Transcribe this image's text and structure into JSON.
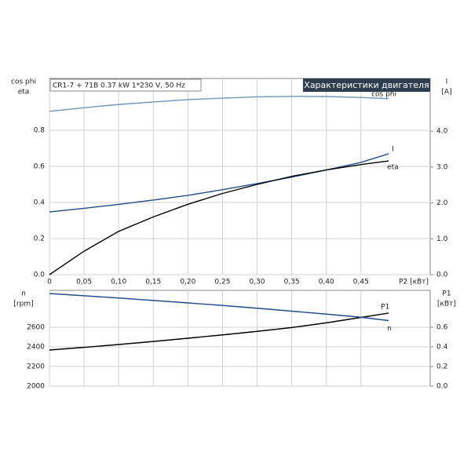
{
  "chart_data": [
    {
      "type": "line",
      "title": "Характеристики двигателя",
      "subtitle": "CR1-7 + 71B  0.37 kW  1*230 V, 50 Hz",
      "x_label": "P2 [кВт]",
      "y_label": [
        "cos phi",
        "eta"
      ],
      "y2_label": [
        "I",
        "[A]"
      ],
      "x": [
        0,
        0.05,
        0.1,
        0.15,
        0.2,
        0.25,
        0.3,
        0.35,
        0.4,
        0.45,
        0.49
      ],
      "series": [
        {
          "name": "cos phi",
          "color": "#7096b8",
          "values": [
            0.905,
            0.925,
            0.943,
            0.957,
            0.97,
            0.978,
            0.985,
            0.988,
            0.987,
            0.982,
            0.975
          ]
        },
        {
          "name": "I",
          "color": "#1f4e8c",
          "axis": "y2",
          "values": [
            1.75,
            1.85,
            1.96,
            2.08,
            2.21,
            2.37,
            2.54,
            2.72,
            2.92,
            3.13,
            3.37
          ]
        },
        {
          "name": "eta",
          "color": "#000000",
          "values": [
            0,
            0.13,
            0.24,
            0.32,
            0.39,
            0.45,
            0.5,
            0.545,
            0.58,
            0.61,
            0.63
          ]
        }
      ],
      "xlim": [
        0,
        0.55
      ],
      "xticks": [
        0,
        {
          "value": 0.05,
          "label": "0,05"
        },
        {
          "value": 0.1,
          "label": "0,10"
        },
        {
          "value": 0.15,
          "label": "0,15"
        },
        {
          "value": 0.2,
          "label": "0,20"
        },
        {
          "value": 0.25,
          "label": "0,25"
        },
        {
          "value": 0.3,
          "label": "0,30"
        },
        {
          "value": 0.35,
          "label": "0,35"
        },
        {
          "value": 0.4,
          "label": "0,40"
        },
        {
          "value": 0.45,
          "label": "0,45"
        }
      ],
      "ylim": [
        0,
        1.087
      ],
      "yticks": [
        {
          "value": 0,
          "label": "0.0"
        },
        {
          "value": 0.2,
          "label": "0.2"
        },
        {
          "value": 0.4,
          "label": "0.4"
        },
        {
          "value": 0.6,
          "label": "0.6"
        },
        {
          "value": 0.8,
          "label": "0.8"
        }
      ],
      "y2lim": [
        0,
        5.47
      ],
      "y2ticks": [
        {
          "value": 0,
          "label": "0.0"
        },
        {
          "value": 1,
          "label": "1.0"
        },
        {
          "value": 2,
          "label": "2.0"
        },
        {
          "value": 3,
          "label": "3.0"
        },
        {
          "value": 4,
          "label": "4.0"
        }
      ],
      "grid": true
    },
    {
      "type": "line",
      "y_label": [
        "n",
        "[rpm]"
      ],
      "y2_label": [
        "P1",
        "[кВт]"
      ],
      "x": [
        0,
        0.05,
        0.1,
        0.15,
        0.2,
        0.25,
        0.3,
        0.35,
        0.4,
        0.45,
        0.49
      ],
      "series": [
        {
          "name": "P1",
          "color": "#000000",
          "axis": "y2",
          "values": [
            0.368,
            0.395,
            0.424,
            0.455,
            0.488,
            0.522,
            0.558,
            0.597,
            0.645,
            0.7,
            0.745
          ]
        },
        {
          "name": "n",
          "color": "#1f4e8c",
          "values": [
            2944,
            2921,
            2898,
            2873,
            2848,
            2822,
            2794,
            2764,
            2734,
            2702,
            2668
          ]
        }
      ],
      "xlim": [
        0,
        0.55
      ],
      "ylim": [
        2000,
        2976
      ],
      "yticks": [
        2000,
        2200,
        2400,
        2600
      ],
      "y2lim": [
        0,
        0.976
      ],
      "y2ticks": [
        {
          "value": 0,
          "label": "0.0"
        },
        {
          "value": 0.2,
          "label": "0.2"
        },
        {
          "value": 0.4,
          "label": "0.4"
        },
        {
          "value": 0.6,
          "label": "0.6"
        }
      ],
      "grid": true
    }
  ]
}
